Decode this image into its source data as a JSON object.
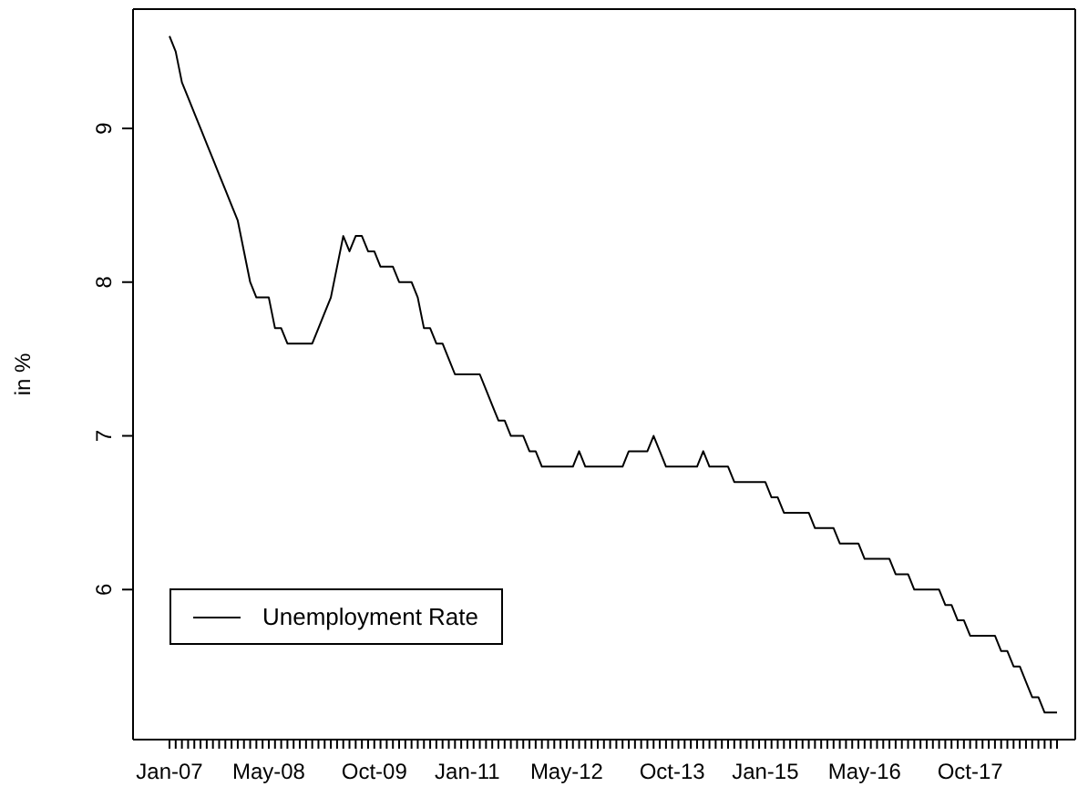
{
  "chart_data": {
    "type": "line",
    "ylabel": "in %",
    "categories": [
      "Jan-07",
      null,
      null,
      null,
      null,
      null,
      null,
      null,
      null,
      null,
      null,
      null,
      null,
      null,
      null,
      null,
      "May-08",
      null,
      null,
      null,
      null,
      null,
      null,
      null,
      null,
      null,
      null,
      null,
      null,
      null,
      null,
      null,
      null,
      "Oct-09",
      null,
      null,
      null,
      null,
      null,
      null,
      null,
      null,
      null,
      null,
      null,
      null,
      null,
      null,
      "Jan-11",
      null,
      null,
      null,
      null,
      null,
      null,
      null,
      null,
      null,
      null,
      null,
      null,
      null,
      null,
      null,
      "May-12",
      null,
      null,
      null,
      null,
      null,
      null,
      null,
      null,
      null,
      null,
      null,
      null,
      null,
      null,
      null,
      null,
      "Oct-13",
      null,
      null,
      null,
      null,
      null,
      null,
      null,
      null,
      null,
      null,
      null,
      null,
      null,
      null,
      "Jan-15",
      null,
      null,
      null,
      null,
      null,
      null,
      null,
      null,
      null,
      null,
      null,
      null,
      null,
      null,
      null,
      "May-16",
      null,
      null,
      null,
      null,
      null,
      null,
      null,
      null,
      null,
      null,
      null,
      null,
      null,
      null,
      null,
      null,
      "Oct-17",
      null,
      null,
      null,
      null,
      null,
      null,
      null,
      null,
      null,
      null,
      null,
      null,
      null,
      null
    ],
    "series": [
      {
        "name": "Unemployment Rate",
        "color": "#000000",
        "values": [
          9.6,
          9.5,
          9.3,
          9.2,
          9.1,
          9.0,
          8.9,
          8.8,
          8.7,
          8.6,
          8.5,
          8.4,
          8.2,
          8.0,
          7.9,
          7.9,
          7.9,
          7.7,
          7.7,
          7.6,
          7.6,
          7.6,
          7.6,
          7.6,
          7.7,
          7.8,
          7.9,
          8.1,
          8.3,
          8.2,
          8.3,
          8.3,
          8.2,
          8.2,
          8.1,
          8.1,
          8.1,
          8.0,
          8.0,
          8.0,
          7.9,
          7.7,
          7.7,
          7.6,
          7.6,
          7.5,
          7.4,
          7.4,
          7.4,
          7.4,
          7.4,
          7.3,
          7.2,
          7.1,
          7.1,
          7.0,
          7.0,
          7.0,
          6.9,
          6.9,
          6.8,
          6.8,
          6.8,
          6.8,
          6.8,
          6.8,
          6.9,
          6.8,
          6.8,
          6.8,
          6.8,
          6.8,
          6.8,
          6.8,
          6.9,
          6.9,
          6.9,
          6.9,
          7.0,
          6.9,
          6.8,
          6.8,
          6.8,
          6.8,
          6.8,
          6.8,
          6.9,
          6.8,
          6.8,
          6.8,
          6.8,
          6.7,
          6.7,
          6.7,
          6.7,
          6.7,
          6.7,
          6.6,
          6.6,
          6.5,
          6.5,
          6.5,
          6.5,
          6.5,
          6.4,
          6.4,
          6.4,
          6.4,
          6.3,
          6.3,
          6.3,
          6.3,
          6.2,
          6.2,
          6.2,
          6.2,
          6.2,
          6.1,
          6.1,
          6.1,
          6.0,
          6.0,
          6.0,
          6.0,
          6.0,
          5.9,
          5.9,
          5.8,
          5.8,
          5.7,
          5.7,
          5.7,
          5.7,
          5.7,
          5.6,
          5.6,
          5.5,
          5.5,
          5.4,
          5.3,
          5.3,
          5.2,
          5.2,
          5.2
        ]
      }
    ],
    "ylim": [
      5.024,
      9.776
    ],
    "yticks": [
      6,
      7,
      8,
      9
    ],
    "grid": false,
    "legend": "bottom left",
    "line_style": "solid",
    "marker": "none"
  }
}
